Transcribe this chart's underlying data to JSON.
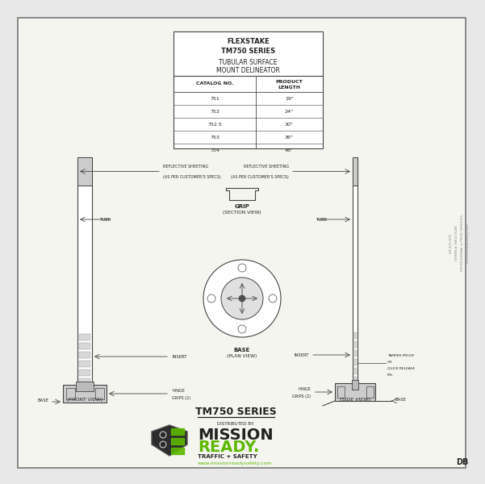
{
  "title_line1": "FLEXSTAKE",
  "title_line2": "TM750 SERIES",
  "subtitle": "TUBULAR SURFACE\nMOUNT DELINEATOR",
  "catalog_data": [
    [
      "751",
      "19\""
    ],
    [
      "752",
      "24\""
    ],
    [
      "752.5",
      "30\""
    ],
    [
      "753",
      "36\""
    ],
    [
      "754",
      "48\""
    ]
  ],
  "series_title": "TM750 SERIES",
  "distributed_by": "DISTRIBUTED BY:",
  "logo_text1": "MISSION",
  "logo_text2": "READY.",
  "logo_sub": "TRAFFIC + SAFETY",
  "logo_url": "www.missionreadysafety.com",
  "bg_color": "#e8e8e8",
  "paper_color": "#f5f5f0",
  "line_color": "#444444",
  "dark_color": "#222222",
  "green_color": "#5cb800",
  "label_reflective_left": "REFLECTIVE SHEETING\n(AS PER CUSTOMER'S SPECS)",
  "label_tube_left": "TUBE",
  "label_insert_left": "INSERT",
  "label_hinge_left": "HINGE\nGRIPS (2)",
  "label_base_left": "BASE",
  "label_front": "(FRONT VIEW)",
  "label_reflective_right": "REFLECTIVE SHEETING\n(AS PER CUSTOMER'S SPECS)",
  "label_tube_right": "TUBE",
  "label_insert_right": "INSERT",
  "label_hinge_right": "HINGE\nGRIPS (2)",
  "label_base_right": "BASE",
  "label_tamper": "TAMPER PROOF\nOR\nQUICK RELEASE\nP.N.",
  "label_side": "(SIDE VIEW)",
  "label_grip": "GRIP",
  "label_grip_sub": "(SECTION VIEW)",
  "label_base_plan": "BASE",
  "label_base_plan_sub": "(PLAN VIEW)",
  "right_sidebar1": "missionreadysafety.com",
  "right_sidebar2": "PROFESSIONAL & PROD SERVICES",
  "right_sidebar3": "DEBRA A. BAGCOLATI",
  "right_sidebar4": "DM-435-876",
  "bottom_right": "DB"
}
